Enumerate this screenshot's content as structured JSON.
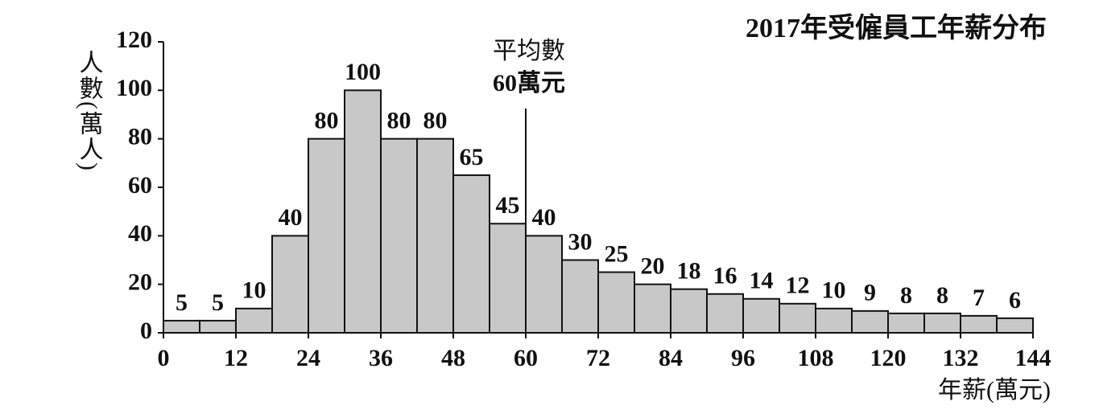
{
  "chart_data": {
    "type": "histogram",
    "title": "2017年受僱員工年薪分布",
    "y_label": "人數(萬人)",
    "x_label": "年薪(萬元)",
    "bins": [
      0,
      6,
      12,
      18,
      24,
      30,
      36,
      42,
      48,
      54,
      60,
      66,
      72,
      78,
      84,
      90,
      96,
      102,
      108,
      114,
      120,
      126,
      132,
      138,
      144
    ],
    "counts": [
      5,
      5,
      10,
      40,
      80,
      100,
      80,
      80,
      65,
      45,
      40,
      30,
      25,
      20,
      18,
      16,
      14,
      12,
      10,
      9,
      8,
      8,
      7,
      6
    ],
    "color": "#c8c8c8",
    "xlim": [
      0,
      144
    ],
    "xticks": [
      0,
      12,
      24,
      36,
      48,
      60,
      72,
      84,
      96,
      108,
      120,
      132,
      144
    ],
    "ylim": [
      0,
      120
    ],
    "yticks": [
      0,
      20,
      40,
      60,
      80,
      100,
      120
    ],
    "mean": {
      "value": 60,
      "label": [
        "平均數",
        "60萬元"
      ]
    }
  }
}
